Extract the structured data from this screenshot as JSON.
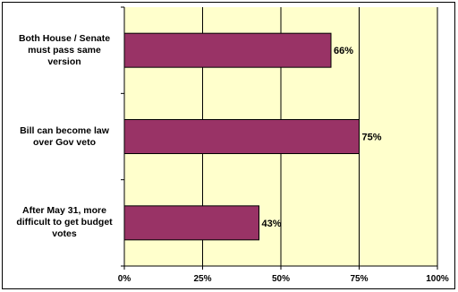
{
  "chart_data": {
    "type": "bar",
    "orientation": "horizontal",
    "categories": [
      [
        "Both House / Senate",
        "must pass same",
        "version"
      ],
      [
        "Bill can become law",
        "over Gov veto"
      ],
      [
        "After May 31, more",
        "difficult to get budget",
        "votes"
      ]
    ],
    "values": [
      66,
      75,
      43
    ],
    "value_labels": [
      "66%",
      "75%",
      "43%"
    ],
    "xlim": [
      0,
      100
    ],
    "x_ticks": [
      "0%",
      "25%",
      "50%",
      "75%",
      "100%"
    ],
    "title": "",
    "xlabel": "",
    "ylabel": "",
    "grid": true,
    "legend": "none",
    "colors": {
      "bar": "#993366",
      "plot_background": "#ffffcc",
      "grid": "#000000"
    }
  }
}
